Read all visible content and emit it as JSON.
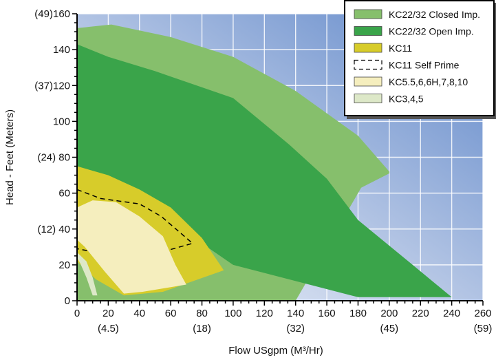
{
  "chart_data": {
    "type": "area",
    "title": "",
    "xlabel": "Flow USgpm (M³/Hr)",
    "ylabel": "Head  - Feet (Meters)",
    "xlim": [
      0,
      260
    ],
    "ylim": [
      0,
      160
    ],
    "x_ticks": [
      "0",
      "20",
      "40",
      "60",
      "80",
      "100",
      "120",
      "140",
      "160",
      "180",
      "200",
      "220",
      "240",
      "260"
    ],
    "x_tick_values": [
      0,
      20,
      40,
      60,
      80,
      100,
      120,
      140,
      160,
      180,
      200,
      220,
      240,
      260
    ],
    "x_secondary_ticks": [
      {
        "x": 20,
        "label": "(4.5)"
      },
      {
        "x": 80,
        "label": "(18)"
      },
      {
        "x": 140,
        "label": "(32)"
      },
      {
        "x": 200,
        "label": "(45)"
      },
      {
        "x": 260,
        "label": "(59)"
      }
    ],
    "y_ticks": [
      {
        "y": 0,
        "label": "0"
      },
      {
        "y": 20,
        "label": "20"
      },
      {
        "y": 40,
        "label": "(12) 40"
      },
      {
        "y": 60,
        "label": "60"
      },
      {
        "y": 80,
        "label": "(24) 80"
      },
      {
        "y": 100,
        "label": "100"
      },
      {
        "y": 120,
        "label": "(37)120"
      },
      {
        "y": 140,
        "label": "140"
      },
      {
        "y": 160,
        "label": "(49)160"
      }
    ],
    "grid": true,
    "legend_position": "top-right",
    "series": [
      {
        "name": "KC22/32 Closed Imp.",
        "color": "#86bf6c",
        "style": "fill",
        "points": [
          [
            0,
            152
          ],
          [
            22,
            154
          ],
          [
            60,
            147
          ],
          [
            100,
            136
          ],
          [
            140,
            117
          ],
          [
            180,
            92
          ],
          [
            200,
            72
          ],
          [
            200,
            71
          ],
          [
            182,
            63
          ],
          [
            140,
            0
          ],
          [
            0,
            0
          ]
        ]
      },
      {
        "name": "KC22/32 Open Imp.",
        "color": "#3aa44a",
        "style": "fill",
        "points": [
          [
            0,
            143
          ],
          [
            20,
            136
          ],
          [
            50,
            128
          ],
          [
            100,
            113
          ],
          [
            136,
            87
          ],
          [
            160,
            68
          ],
          [
            180,
            45
          ],
          [
            215,
            20
          ],
          [
            240,
            2
          ],
          [
            180,
            2
          ],
          [
            100,
            20
          ],
          [
            50,
            50
          ],
          [
            0,
            72
          ]
        ]
      },
      {
        "name": "KC11",
        "color": "#d7cc2a",
        "style": "fill",
        "points": [
          [
            0,
            75
          ],
          [
            20,
            70
          ],
          [
            40,
            62
          ],
          [
            60,
            52
          ],
          [
            80,
            35
          ],
          [
            94,
            17
          ],
          [
            55,
            5
          ],
          [
            30,
            3
          ],
          [
            12,
            12
          ],
          [
            0,
            22
          ]
        ]
      },
      {
        "name": "KC11 Self Prime",
        "color": "#000000",
        "style": "dashed",
        "points": [
          [
            0,
            62
          ],
          [
            15,
            57
          ],
          [
            40,
            54
          ],
          [
            54,
            47
          ],
          [
            74,
            32
          ],
          [
            37,
            23
          ],
          [
            0,
            29
          ],
          [
            0,
            62
          ]
        ]
      },
      {
        "name": "KC5.5,6,6H,7,8,10",
        "color": "#f5eebe",
        "style": "fill",
        "points": [
          [
            0,
            52
          ],
          [
            10,
            56
          ],
          [
            25,
            55
          ],
          [
            40,
            47
          ],
          [
            55,
            36
          ],
          [
            63,
            20
          ],
          [
            70,
            9
          ],
          [
            42,
            5
          ],
          [
            30,
            4
          ],
          [
            18,
            16
          ],
          [
            5,
            30
          ],
          [
            0,
            34
          ]
        ]
      },
      {
        "name": "KC3,4,5",
        "color": "#dde8c8",
        "style": "band",
        "points": [
          [
            0,
            27
          ],
          [
            6,
            22
          ],
          [
            10,
            13
          ],
          [
            13,
            3
          ],
          [
            10,
            3
          ],
          [
            6,
            13
          ],
          [
            2,
            21
          ],
          [
            0,
            24
          ]
        ]
      }
    ]
  }
}
